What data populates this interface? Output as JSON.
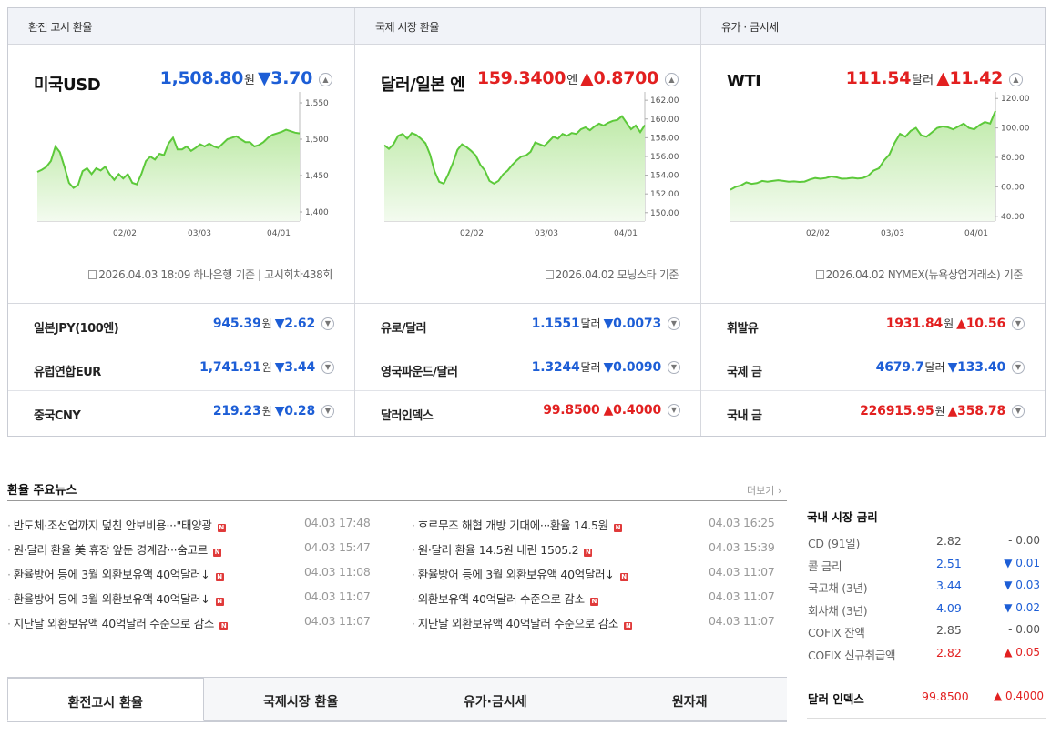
{
  "columns": [
    {
      "header": "환전 고시 환율",
      "hero": {
        "name": "미국USD",
        "value": "1,508.80",
        "unit": "원",
        "change": "▼3.70",
        "dir": "down"
      },
      "basis": "2026.04.03 18:09 하나은행 기준 | 고시회차438회",
      "rows": [
        {
          "name": "일본JPY(100엔)",
          "value": "945.39",
          "unit": "원",
          "change": "▼2.62",
          "dir": "down"
        },
        {
          "name": "유럽연합EUR",
          "value": "1,741.91",
          "unit": "원",
          "change": "▼3.44",
          "dir": "down"
        },
        {
          "name": "중국CNY",
          "value": "219.23",
          "unit": "원",
          "change": "▼0.28",
          "dir": "down"
        }
      ]
    },
    {
      "header": "국제 시장 환율",
      "hero": {
        "name": "달러/일본 엔",
        "value": "159.3400",
        "unit": "엔",
        "change": "▲0.8700",
        "dir": "up"
      },
      "basis": "2026.04.02 모닝스타 기준",
      "rows": [
        {
          "name": "유로/달러",
          "value": "1.1551",
          "unit": "달러",
          "change": "▼0.0073",
          "dir": "down"
        },
        {
          "name": "영국파운드/달러",
          "value": "1.3244",
          "unit": "달러",
          "change": "▼0.0090",
          "dir": "down"
        },
        {
          "name": "달러인덱스",
          "value": "99.8500",
          "unit": "",
          "change": "▲0.4000",
          "dir": "up"
        }
      ]
    },
    {
      "header": "유가 · 금시세",
      "hero": {
        "name": "WTI",
        "value": "111.54",
        "unit": "달러",
        "change": "▲11.42",
        "dir": "up"
      },
      "basis": "2026.04.02 NYMEX(뉴욕상업거래소) 기준",
      "rows": [
        {
          "name": "휘발유",
          "value": "1931.84",
          "unit": "원",
          "change": "▲10.56",
          "dir": "up"
        },
        {
          "name": "국제 금",
          "value": "4679.7",
          "unit": "달러",
          "change": "▼133.40",
          "dir": "down"
        },
        {
          "name": "국내 금",
          "value": "226915.95",
          "unit": "원",
          "change": "▲358.78",
          "dir": "up"
        }
      ]
    }
  ],
  "chart_data": [
    {
      "type": "area",
      "x_ticks": [
        "02/02",
        "03/03",
        "04/01"
      ],
      "y_ticks": [
        "1,550",
        "1,500",
        "1,450",
        "1,400"
      ],
      "ylim": [
        1390,
        1560
      ],
      "values": [
        1455,
        1458,
        1462,
        1470,
        1490,
        1482,
        1462,
        1440,
        1433,
        1437,
        1456,
        1460,
        1452,
        1460,
        1457,
        1462,
        1452,
        1444,
        1452,
        1446,
        1452,
        1440,
        1438,
        1452,
        1470,
        1476,
        1472,
        1480,
        1478,
        1494,
        1502,
        1486,
        1486,
        1490,
        1484,
        1488,
        1493,
        1490,
        1494,
        1490,
        1488,
        1494,
        1500,
        1502,
        1504,
        1500,
        1496,
        1496,
        1490,
        1492,
        1496,
        1502,
        1506,
        1508,
        1510,
        1513,
        1511,
        1509,
        1508
      ]
    },
    {
      "type": "area",
      "x_ticks": [
        "02/02",
        "03/03",
        "04/01"
      ],
      "y_ticks": [
        "162.00",
        "160.00",
        "158.00",
        "156.00",
        "154.00",
        "152.00",
        "150.00"
      ],
      "ylim": [
        149.3,
        162.5
      ],
      "values": [
        157.2,
        156.8,
        157.3,
        158.2,
        158.4,
        157.9,
        158.5,
        158.3,
        157.9,
        157.4,
        156.2,
        154.4,
        153.3,
        153.1,
        154.1,
        155.3,
        156.7,
        157.3,
        157.0,
        156.6,
        156.1,
        155.1,
        154.5,
        153.4,
        153.1,
        153.4,
        154.1,
        154.5,
        155.1,
        155.6,
        156.0,
        156.1,
        156.5,
        157.5,
        157.3,
        157.1,
        157.6,
        158.1,
        157.9,
        158.4,
        158.2,
        158.5,
        158.4,
        158.9,
        159.1,
        158.8,
        159.2,
        159.5,
        159.3,
        159.6,
        159.8,
        159.9,
        160.3,
        159.6,
        158.9,
        159.3,
        158.6,
        159.34
      ]
    },
    {
      "type": "area",
      "x_ticks": [
        "02/02",
        "03/03",
        "04/01"
      ],
      "y_ticks": [
        "120.00",
        "100.00",
        "80.00",
        "60.00",
        "40.00"
      ],
      "ylim": [
        38,
        122
      ],
      "values": [
        58,
        60,
        61,
        63,
        62,
        62.5,
        64,
        63.5,
        64,
        64.5,
        64,
        63.5,
        63.7,
        63.3,
        63.6,
        65,
        66,
        65.5,
        66,
        67,
        66.5,
        65.5,
        65.7,
        66.1,
        65.6,
        66,
        67.5,
        71,
        72.5,
        78,
        82,
        90,
        96,
        94,
        98,
        100,
        95,
        94,
        97,
        100,
        101,
        100.5,
        99,
        101,
        103,
        100,
        99,
        102,
        104,
        103,
        111.54
      ]
    }
  ],
  "news": {
    "title": "환율 주요뉴스",
    "more": "더보기",
    "left": [
      {
        "title": "반도체·조선업까지 덮친 안보비용···\"태양광",
        "time": "04.03 17:48"
      },
      {
        "title": "원·달러 환율 美 휴장 앞둔 경계감···숨고르",
        "time": "04.03 15:47"
      },
      {
        "title": "환율방어 등에 3월 외환보유액 40억달러↓",
        "time": "04.03 11:08"
      },
      {
        "title": "환율방어 등에 3월 외환보유액 40억달러↓",
        "time": "04.03 11:07"
      },
      {
        "title": "지난달 외환보유액 40억달러 수준으로 감소",
        "time": "04.03 11:07"
      }
    ],
    "right": [
      {
        "title": "호르무즈 해협 개방 기대에···환율 14.5원",
        "time": "04.03 16:25"
      },
      {
        "title": "원·달러 환율 14.5원 내린 1505.2",
        "time": "04.03 15:39"
      },
      {
        "title": "환율방어 등에 3월 외환보유액 40억달러↓",
        "time": "04.03 11:07"
      },
      {
        "title": "외환보유액 40억달러 수준으로 감소",
        "time": "04.03 11:07"
      },
      {
        "title": "지난달 외환보유액 40억달러 수준으로 감소",
        "time": "04.03 11:07"
      }
    ],
    "badge": "N"
  },
  "tabs": [
    "환전고시 환율",
    "국제시장 환율",
    "유가·금시세",
    "원자재"
  ],
  "rates": {
    "title": "국내 시장 금리",
    "rows": [
      {
        "name": "CD (91일)",
        "value": "2.82",
        "change": "- 0.00",
        "dir": "flat"
      },
      {
        "name": "콜 금리",
        "value": "2.51",
        "change": "▼ 0.01",
        "dir": "down"
      },
      {
        "name": "국고채 (3년)",
        "value": "3.44",
        "change": "▼ 0.03",
        "dir": "down"
      },
      {
        "name": "회사채 (3년)",
        "value": "4.09",
        "change": "▼ 0.02",
        "dir": "down"
      },
      {
        "name": "COFIX 잔액",
        "value": "2.85",
        "change": "- 0.00",
        "dir": "flat"
      },
      {
        "name": "COFIX 신규취급액",
        "value": "2.82",
        "change": "▲ 0.05",
        "dir": "up"
      }
    ],
    "dollar": {
      "name": "달러 인덱스",
      "value": "99.8500",
      "change": "▲ 0.4000",
      "dir": "up"
    }
  },
  "colors": {
    "up": "#e22020",
    "down": "#1d5ed6",
    "flat": "#666666",
    "line": "#5cc93a",
    "fill_top": "#bfeaa9",
    "fill_bottom": "#f3fbef"
  }
}
